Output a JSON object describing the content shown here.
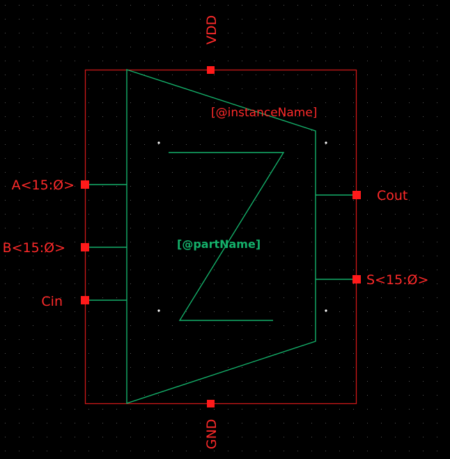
{
  "labels": {
    "vdd": "VDD",
    "gnd": "GND",
    "instance_name": "[@instanceName]",
    "part_name": "[@partName]",
    "pin_a": "A<15:Ø>",
    "pin_b": "B<15:Ø>",
    "pin_cin": "Cin",
    "pin_cout": "Cout",
    "pin_s": "S<15:Ø>"
  },
  "colors": {
    "background": "#000000",
    "grid_dot": "#5a5a5a",
    "boundary": "#d01818",
    "pin": "#ff1a1a",
    "label_red": "#ff2a2a",
    "symbol_green": "#14b06a"
  }
}
